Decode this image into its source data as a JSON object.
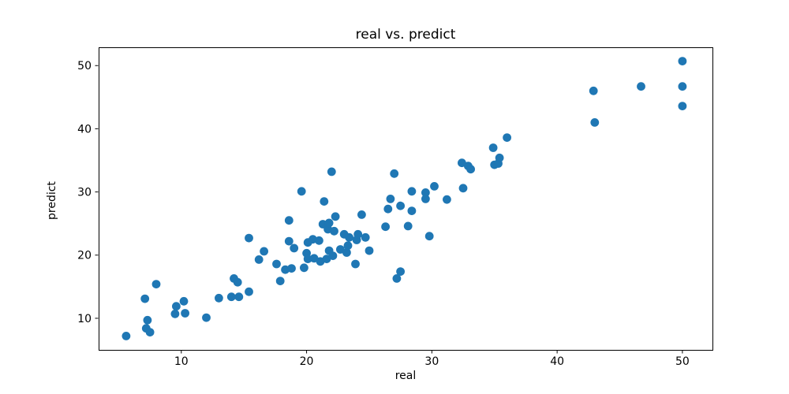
{
  "chart_data": {
    "type": "scatter",
    "title": "real vs. predict",
    "xlabel": "real",
    "ylabel": "predict",
    "xlim": [
      3.4,
      52.4
    ],
    "ylim": [
      5.0,
      52.9
    ],
    "x_ticks": [
      "10",
      "20",
      "30",
      "40",
      "50"
    ],
    "y_ticks": [
      "10",
      "20",
      "30",
      "40",
      "50"
    ],
    "x_tick_values": [
      10,
      20,
      30,
      40,
      50
    ],
    "y_tick_values": [
      10,
      20,
      30,
      40,
      50
    ],
    "grid": false,
    "legend": null,
    "marker_color": "#1f77b4",
    "spine_color": "#000000",
    "marker_radius_px": 5.4,
    "points": [
      [
        5.6,
        7.2
      ],
      [
        7.1,
        13.1
      ],
      [
        7.2,
        8.4
      ],
      [
        7.3,
        9.7
      ],
      [
        7.5,
        7.8
      ],
      [
        8.0,
        15.4
      ],
      [
        9.5,
        10.7
      ],
      [
        9.6,
        11.9
      ],
      [
        10.2,
        12.7
      ],
      [
        10.3,
        10.8
      ],
      [
        12.0,
        10.1
      ],
      [
        13.0,
        13.2
      ],
      [
        14.0,
        13.4
      ],
      [
        14.2,
        16.3
      ],
      [
        14.5,
        15.7
      ],
      [
        14.6,
        13.4
      ],
      [
        15.4,
        14.2
      ],
      [
        15.4,
        22.7
      ],
      [
        16.2,
        19.3
      ],
      [
        16.6,
        20.6
      ],
      [
        17.6,
        18.6
      ],
      [
        17.9,
        15.9
      ],
      [
        18.3,
        17.7
      ],
      [
        18.6,
        25.5
      ],
      [
        18.6,
        22.2
      ],
      [
        18.8,
        17.9
      ],
      [
        19.0,
        21.1
      ],
      [
        19.6,
        30.1
      ],
      [
        19.8,
        18.0
      ],
      [
        20.0,
        20.3
      ],
      [
        20.1,
        19.4
      ],
      [
        20.1,
        22.0
      ],
      [
        20.5,
        22.5
      ],
      [
        20.6,
        19.5
      ],
      [
        21.0,
        22.3
      ],
      [
        21.1,
        19.0
      ],
      [
        21.3,
        24.9
      ],
      [
        21.4,
        28.5
      ],
      [
        21.6,
        19.4
      ],
      [
        21.7,
        24.1
      ],
      [
        21.8,
        25.1
      ],
      [
        21.8,
        20.7
      ],
      [
        22.0,
        33.2
      ],
      [
        22.1,
        19.9
      ],
      [
        22.2,
        23.8
      ],
      [
        22.3,
        26.1
      ],
      [
        22.7,
        20.9
      ],
      [
        23.0,
        23.3
      ],
      [
        23.2,
        20.4
      ],
      [
        23.3,
        21.5
      ],
      [
        23.4,
        22.8
      ],
      [
        23.9,
        18.6
      ],
      [
        24.0,
        22.4
      ],
      [
        24.1,
        23.3
      ],
      [
        24.4,
        26.4
      ],
      [
        24.7,
        22.8
      ],
      [
        25.0,
        20.7
      ],
      [
        26.3,
        24.5
      ],
      [
        26.5,
        27.3
      ],
      [
        26.7,
        28.9
      ],
      [
        27.0,
        32.9
      ],
      [
        27.2,
        16.3
      ],
      [
        27.5,
        27.8
      ],
      [
        27.5,
        17.4
      ],
      [
        28.1,
        24.6
      ],
      [
        28.4,
        27.0
      ],
      [
        28.4,
        30.1
      ],
      [
        29.5,
        29.9
      ],
      [
        29.5,
        28.9
      ],
      [
        29.8,
        23.0
      ],
      [
        30.2,
        30.9
      ],
      [
        31.2,
        28.8
      ],
      [
        32.4,
        34.6
      ],
      [
        32.5,
        30.6
      ],
      [
        32.9,
        34.1
      ],
      [
        33.1,
        33.6
      ],
      [
        34.9,
        37.0
      ],
      [
        35.0,
        34.3
      ],
      [
        35.3,
        34.5
      ],
      [
        35.4,
        35.4
      ],
      [
        36.0,
        38.6
      ],
      [
        42.9,
        46.0
      ],
      [
        43.0,
        41.0
      ],
      [
        46.7,
        46.7
      ],
      [
        50.0,
        50.7
      ],
      [
        50.0,
        46.7
      ],
      [
        50.0,
        43.6
      ]
    ]
  }
}
